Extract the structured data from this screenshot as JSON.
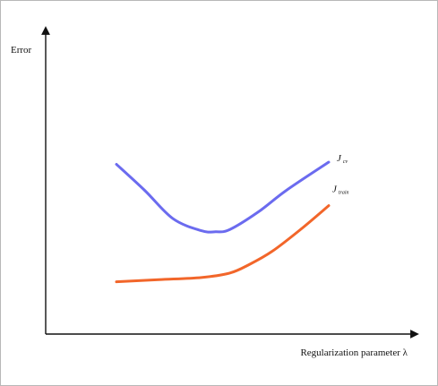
{
  "chart_data": {
    "type": "line",
    "title": "",
    "ylabel": "Error",
    "xlabel": "Regularization parameter λ",
    "xlim": [
      0,
      100
    ],
    "ylim": [
      0,
      100
    ],
    "grid": false,
    "legend": "inline labels at right end of each curve",
    "series": [
      {
        "name": "J_cv",
        "label_main": "J",
        "label_sub": "cv",
        "color": "#6b6bef",
        "x": [
          25,
          35,
          45,
          55,
          60,
          65,
          75,
          85,
          100
        ],
        "y": [
          78,
          66,
          53,
          47.5,
          47,
          48,
          56,
          66,
          79
        ]
      },
      {
        "name": "J_train",
        "label_main": "J",
        "label_sub": "train",
        "color": "#f2662a",
        "x": [
          25,
          40,
          55,
          65,
          72,
          80,
          90,
          100
        ],
        "y": [
          24,
          25,
          26,
          28,
          32,
          38,
          48,
          59
        ]
      }
    ]
  }
}
